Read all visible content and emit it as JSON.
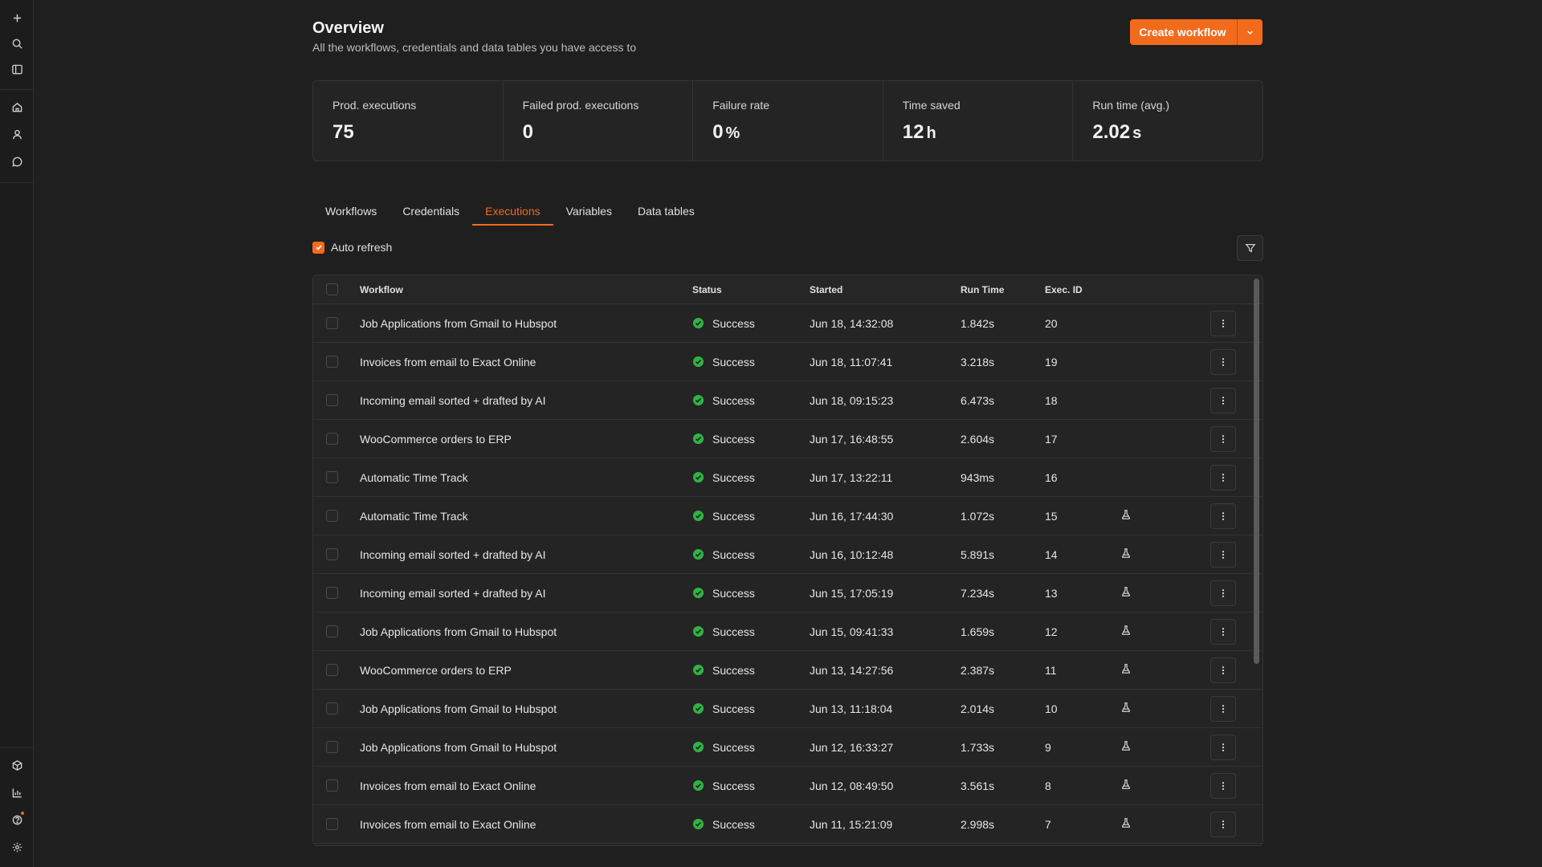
{
  "header": {
    "title": "Overview",
    "subtitle": "All the workflows, credentials and data tables you have access to",
    "create_button": "Create workflow"
  },
  "stats": [
    {
      "label": "Prod. executions",
      "value": "75",
      "unit": ""
    },
    {
      "label": "Failed prod. executions",
      "value": "0",
      "unit": ""
    },
    {
      "label": "Failure rate",
      "value": "0",
      "unit": "%"
    },
    {
      "label": "Time saved",
      "value": "12",
      "unit": "h"
    },
    {
      "label": "Run time (avg.)",
      "value": "2.02",
      "unit": "s"
    }
  ],
  "tabs": [
    {
      "label": "Workflows",
      "active": false
    },
    {
      "label": "Credentials",
      "active": false
    },
    {
      "label": "Executions",
      "active": true
    },
    {
      "label": "Variables",
      "active": false
    },
    {
      "label": "Data tables",
      "active": false
    }
  ],
  "controls": {
    "auto_refresh_label": "Auto refresh",
    "auto_refresh_checked": true
  },
  "table": {
    "columns": [
      "Workflow",
      "Status",
      "Started",
      "Run Time",
      "Exec. ID"
    ],
    "rows": [
      {
        "workflow": "Job Applications from Gmail to Hubspot",
        "status": "Success",
        "started": "Jun 18, 14:32:08",
        "run_time": "1.842s",
        "exec_id": "20",
        "manual": false
      },
      {
        "workflow": "Invoices from email to Exact Online",
        "status": "Success",
        "started": "Jun 18, 11:07:41",
        "run_time": "3.218s",
        "exec_id": "19",
        "manual": false
      },
      {
        "workflow": "Incoming email sorted + drafted by AI",
        "status": "Success",
        "started": "Jun 18, 09:15:23",
        "run_time": "6.473s",
        "exec_id": "18",
        "manual": false
      },
      {
        "workflow": "WooCommerce orders to ERP",
        "status": "Success",
        "started": "Jun 17, 16:48:55",
        "run_time": "2.604s",
        "exec_id": "17",
        "manual": false
      },
      {
        "workflow": "Automatic Time Track",
        "status": "Success",
        "started": "Jun 17, 13:22:11",
        "run_time": "943ms",
        "exec_id": "16",
        "manual": false
      },
      {
        "workflow": "Automatic Time Track",
        "status": "Success",
        "started": "Jun 16, 17:44:30",
        "run_time": "1.072s",
        "exec_id": "15",
        "manual": true
      },
      {
        "workflow": "Incoming email sorted + drafted by AI",
        "status": "Success",
        "started": "Jun 16, 10:12:48",
        "run_time": "5.891s",
        "exec_id": "14",
        "manual": true
      },
      {
        "workflow": "Incoming email sorted + drafted by AI",
        "status": "Success",
        "started": "Jun 15, 17:05:19",
        "run_time": "7.234s",
        "exec_id": "13",
        "manual": true
      },
      {
        "workflow": "Job Applications from Gmail to Hubspot",
        "status": "Success",
        "started": "Jun 15, 09:41:33",
        "run_time": "1.659s",
        "exec_id": "12",
        "manual": true
      },
      {
        "workflow": "WooCommerce orders to ERP",
        "status": "Success",
        "started": "Jun 13, 14:27:56",
        "run_time": "2.387s",
        "exec_id": "11",
        "manual": true
      },
      {
        "workflow": "Job Applications from Gmail to Hubspot",
        "status": "Success",
        "started": "Jun 13, 11:18:04",
        "run_time": "2.014s",
        "exec_id": "10",
        "manual": true
      },
      {
        "workflow": "Job Applications from Gmail to Hubspot",
        "status": "Success",
        "started": "Jun 12, 16:33:27",
        "run_time": "1.733s",
        "exec_id": "9",
        "manual": true
      },
      {
        "workflow": "Invoices from email to Exact Online",
        "status": "Success",
        "started": "Jun 12, 08:49:50",
        "run_time": "3.561s",
        "exec_id": "8",
        "manual": true
      },
      {
        "workflow": "Invoices from email to Exact Online",
        "status": "Success",
        "started": "Jun 11, 15:21:09",
        "run_time": "2.998s",
        "exec_id": "7",
        "manual": true
      }
    ]
  },
  "colors": {
    "accent": "#f26b1d",
    "success": "#2fb344",
    "background": "#1f1f1f"
  }
}
